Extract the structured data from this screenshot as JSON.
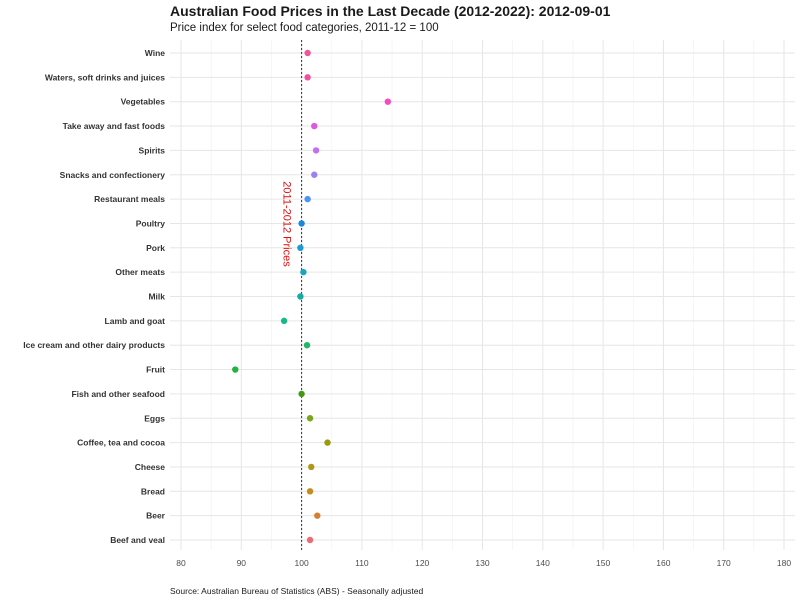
{
  "chart_data": {
    "type": "scatter",
    "title": "Australian Food Prices in the Last Decade (2012-2022): 2012-09-01",
    "subtitle": "Price index for select food categories, 2011-12 = 100",
    "caption": "Source: Australian Bureau of Statistics (ABS) - Seasonally adjusted",
    "xlabel": "",
    "ylabel": "",
    "xlim": [
      80,
      180
    ],
    "xticks": [
      80,
      90,
      100,
      110,
      120,
      130,
      140,
      150,
      160,
      170,
      180
    ],
    "grid": true,
    "legend": "none",
    "reference_line": {
      "x": 100,
      "label": "2011-2012 Prices",
      "color": "#dd1111"
    },
    "categories": [
      "Wine",
      "Waters, soft drinks and juices",
      "Vegetables",
      "Take away and fast foods",
      "Spirits",
      "Snacks and confectionery",
      "Restaurant meals",
      "Poultry",
      "Pork",
      "Other meats",
      "Milk",
      "Lamb and goat",
      "Ice cream and other dairy products",
      "Fruit",
      "Fish and other seafood",
      "Eggs",
      "Coffee, tea and cocoa",
      "Cheese",
      "Bread",
      "Beer",
      "Beef and veal"
    ],
    "values": [
      101.0,
      101.0,
      114.3,
      102.1,
      102.4,
      102.1,
      101.0,
      100.0,
      99.8,
      100.3,
      99.8,
      97.1,
      100.9,
      89.0,
      100.0,
      101.4,
      104.3,
      101.6,
      101.4,
      102.6,
      101.4
    ],
    "colors": [
      "#f0559b",
      "#f2519f",
      "#f24cc3",
      "#df58e0",
      "#c66ef2",
      "#9c81f4",
      "#4d93f4",
      "#1a87e0",
      "#1c9bd4",
      "#16a6c0",
      "#15aca6",
      "#17b88a",
      "#20b768",
      "#24b33e",
      "#409b12",
      "#7aa619",
      "#9b9a09",
      "#b0961a",
      "#c68c1c",
      "#d57f30",
      "#ea6b73"
    ]
  }
}
